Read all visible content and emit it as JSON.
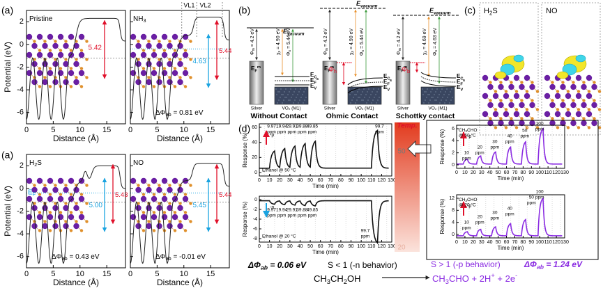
{
  "panel_a": {
    "label": "(a)",
    "y_axis_label": "Potential (eV)",
    "x_axis_label": "Distance (Å)",
    "y_ticks": [
      "2",
      "0",
      "-2",
      "-4",
      "-6"
    ],
    "x_ticks": [
      "0",
      "5",
      "10",
      "15"
    ],
    "plots": [
      {
        "name": [
          {
            "text": "Pristine"
          }
        ],
        "gaps": [
          "5.42"
        ]
      },
      {
        "name": [
          {
            "text": "NH"
          },
          {
            "sub": "3"
          }
        ],
        "gaps": [
          "4.63",
          "5.44"
        ],
        "levels": [
          "VL1",
          "VL2"
        ],
        "delta": [
          {
            "text": "ΔΦ"
          },
          {
            "sub": "ab"
          },
          {
            "text": " = 0.81 eV"
          }
        ]
      },
      {
        "name": [
          {
            "text": "H"
          },
          {
            "sub": "2"
          },
          {
            "text": "S"
          }
        ],
        "gaps": [
          "5.00",
          "5.43"
        ],
        "fermi": [
          {
            "text": "E"
          },
          {
            "sub": "F"
          }
        ],
        "delta": [
          {
            "text": "ΔΦ"
          },
          {
            "sub": "ab"
          },
          {
            "text": " = 0.43 eV"
          }
        ]
      },
      {
        "name": [
          {
            "text": "NO"
          }
        ],
        "gaps": [
          "5.45",
          "5.44"
        ],
        "delta": [
          {
            "text": "ΔΦ"
          },
          {
            "sub": "ab"
          },
          {
            "text": " = -0.01 eV"
          }
        ]
      }
    ]
  },
  "panel_b": {
    "label": "(b)",
    "diagrams": [
      {
        "title": "Without Contact",
        "metal": "Silver",
        "semiconductor": "VO₂ (M1)",
        "vacuum": [
          {
            "text": "E"
          },
          {
            "sub": "vacuum"
          }
        ],
        "work_function_metal": [
          {
            "text": "Φ"
          },
          {
            "sub": "m"
          },
          {
            "text": " = 4.2 eV"
          }
        ],
        "affinity": [
          {
            "text": "χ"
          },
          {
            "sub": "s"
          },
          {
            "text": " = 4.90 eV"
          }
        ],
        "work_function_semi": [
          {
            "text": "Φ"
          },
          {
            "sub": "s"
          },
          {
            "text": " = 5.44 eV"
          }
        ],
        "fermi_metal": [
          {
            "text": "E"
          },
          {
            "sub": "F"
          },
          {
            "sup": "m"
          }
        ],
        "conduction": [
          {
            "text": "E"
          },
          {
            "sub": "C"
          }
        ],
        "fermi_semi": [
          {
            "text": "E"
          },
          {
            "sub": "F"
          },
          {
            "sup": "s"
          }
        ],
        "valence": [
          {
            "text": "E"
          },
          {
            "sub": "V"
          }
        ]
      },
      {
        "title": "Ohmic Contact",
        "metal": "Silver",
        "semiconductor": "VO₂ (M1)",
        "vacuum": [
          {
            "text": "E"
          },
          {
            "sub": "vacuum"
          }
        ],
        "work_function_metal": [
          {
            "text": "Φ"
          },
          {
            "sub": "m"
          },
          {
            "text": " = 4.2 eV"
          }
        ],
        "affinity": [
          {
            "text": "χ"
          },
          {
            "sub": "s"
          },
          {
            "text": " = 4.90 eV"
          }
        ],
        "work_function_semi": [
          {
            "text": "Φ"
          },
          {
            "sub": "s"
          },
          {
            "text": " = 5.44 eV"
          }
        ],
        "fermi_metal": [
          {
            "text": "E"
          },
          {
            "sub": "F"
          },
          {
            "sup": "m"
          }
        ],
        "conduction": [
          {
            "text": "E"
          },
          {
            "sub": "C"
          }
        ],
        "fermi_semi": [
          {
            "text": "E"
          },
          {
            "sub": "F"
          },
          {
            "sup": "s"
          }
        ],
        "valence": [
          {
            "text": "E"
          },
          {
            "sub": "V"
          }
        ],
        "barrier": [
          {
            "text": "Φ"
          },
          {
            "sub": "h"
          }
        ]
      },
      {
        "title": "Schottky contact",
        "metal": "Silver",
        "semiconductor": "VO₂ (M1)",
        "vacuum": [
          {
            "text": "E"
          },
          {
            "sub": "vacuum"
          }
        ],
        "work_function_metal": [
          {
            "text": "Φ"
          },
          {
            "sub": "m"
          },
          {
            "text": " = 4.2 eV"
          }
        ],
        "affinity": [
          {
            "text": "χ"
          },
          {
            "sub": "s"
          },
          {
            "text": " = 4.69 eV"
          }
        ],
        "work_function_semi": [
          {
            "text": "Φ"
          },
          {
            "sub": "s"
          },
          {
            "text": " = 4.63 eV"
          }
        ],
        "fermi_metal": [
          {
            "text": "E"
          },
          {
            "sub": "F"
          },
          {
            "sup": "m"
          }
        ],
        "conduction": [
          {
            "text": "E"
          },
          {
            "sub": "C"
          }
        ],
        "fermi_semi": [
          {
            "text": "E"
          },
          {
            "sub": "F"
          },
          {
            "sup": "s"
          }
        ],
        "valence": [
          {
            "text": "E"
          },
          {
            "sub": "V"
          }
        ],
        "barrier": [
          {
            "text": "Φ"
          },
          {
            "sub": "b"
          }
        ]
      }
    ]
  },
  "panel_c": {
    "label": "(c)",
    "molecules": [
      [
        {
          "text": "H"
        },
        {
          "sub": "2"
        },
        {
          "text": "S"
        }
      ],
      [
        {
          "text": "NO"
        }
      ]
    ]
  },
  "panel_d": {
    "label": "(d)",
    "time_label": "Time (min)",
    "response_label": "Response (%)",
    "time_ticks": [
      "0",
      "10",
      "20",
      "30",
      "40",
      "50",
      "60",
      "70",
      "80",
      "90",
      "100",
      "110",
      "120",
      "130"
    ],
    "ethanol_50": {
      "condition": "Ethanol @ 50 °C",
      "arrow": "-p",
      "y_ticks": [
        "60",
        "40",
        "20",
        "0"
      ],
      "concentrations": [
        {
          "value": "9.97",
          "unit": "ppm"
        },
        {
          "value": "19.94",
          "unit": "ppm"
        },
        {
          "value": "29.91",
          "unit": "ppm"
        },
        {
          "value": "39.88",
          "unit": "ppm"
        },
        {
          "value": "49.85",
          "unit": "ppm"
        },
        {
          "value": "99.7",
          "unit": "ppm"
        }
      ]
    },
    "ethanol_20": {
      "condition": "Ethanol @ 20 °C",
      "arrow": "-n",
      "y_ticks": [
        "0",
        "-2",
        "-4",
        "-6",
        "-8"
      ],
      "concentrations": [
        {
          "value": "9.97",
          "unit": "ppm"
        },
        {
          "value": "19.94",
          "unit": "ppm"
        },
        {
          "value": "29.91",
          "unit": "ppm"
        },
        {
          "value": "39.88",
          "unit": "ppm"
        },
        {
          "value": "49.85",
          "unit": "ppm"
        },
        {
          "value": "99.7",
          "unit": "ppm"
        }
      ]
    },
    "acetaldehyde_50": {
      "gas": [
        {
          "text": "CH"
        },
        {
          "sub": "3"
        },
        {
          "text": "CHO"
        }
      ],
      "condition": "@ 50 °C",
      "arrow": "-p",
      "y_ticks": [
        "6",
        "4",
        "2",
        "0"
      ],
      "concentrations": [
        {
          "value": "10",
          "unit": "ppm"
        },
        {
          "value": "20",
          "unit": "ppm"
        },
        {
          "value": "30",
          "unit": "ppm"
        },
        {
          "value": "40",
          "unit": "ppm"
        },
        {
          "value": "50",
          "unit": "ppm"
        },
        {
          "value": "100",
          "unit": "ppm"
        }
      ]
    },
    "acetaldehyde_20": {
      "gas": [
        {
          "text": "CH"
        },
        {
          "sub": "3"
        },
        {
          "text": "CHO"
        }
      ],
      "condition": "@ 20 °C",
      "arrow": "-p",
      "y_ticks": [
        "12",
        "8",
        "4",
        "0"
      ],
      "concentrations": [
        {
          "value": "10",
          "unit": "ppm"
        },
        {
          "value": "20",
          "unit": "ppm"
        },
        {
          "value": "30",
          "unit": "ppm"
        },
        {
          "value": "40",
          "unit": "ppm"
        },
        {
          "value": "50",
          "unit": "ppm"
        },
        {
          "value": "100",
          "unit": "ppm"
        }
      ]
    },
    "temperature": {
      "label": "Temp.",
      "high": "50",
      "low": "20"
    },
    "ethanol_summary": {
      "delta": [
        {
          "text": "ΔΦ"
        },
        {
          "sub": "ab"
        },
        {
          "text": " = 0.06 eV"
        }
      ],
      "behavior": "S < 1 (-n behavior)",
      "formula": [
        {
          "text": "CH"
        },
        {
          "sub": "3"
        },
        {
          "text": "CH"
        },
        {
          "sub": "2"
        },
        {
          "text": "OH"
        }
      ]
    },
    "acetaldehyde_summary": {
      "behavior": "S > 1 (-p behavior)",
      "delta": [
        {
          "text": "ΔΦ"
        },
        {
          "sub": "ab"
        },
        {
          "text": " = 1.24 eV"
        }
      ],
      "formula": [
        {
          "text": "CH"
        },
        {
          "sub": "3"
        },
        {
          "text": "CHO + 2H"
        },
        {
          "sup": "+"
        },
        {
          "text": " + 2e"
        },
        {
          "sup": "-"
        }
      ]
    }
  }
}
